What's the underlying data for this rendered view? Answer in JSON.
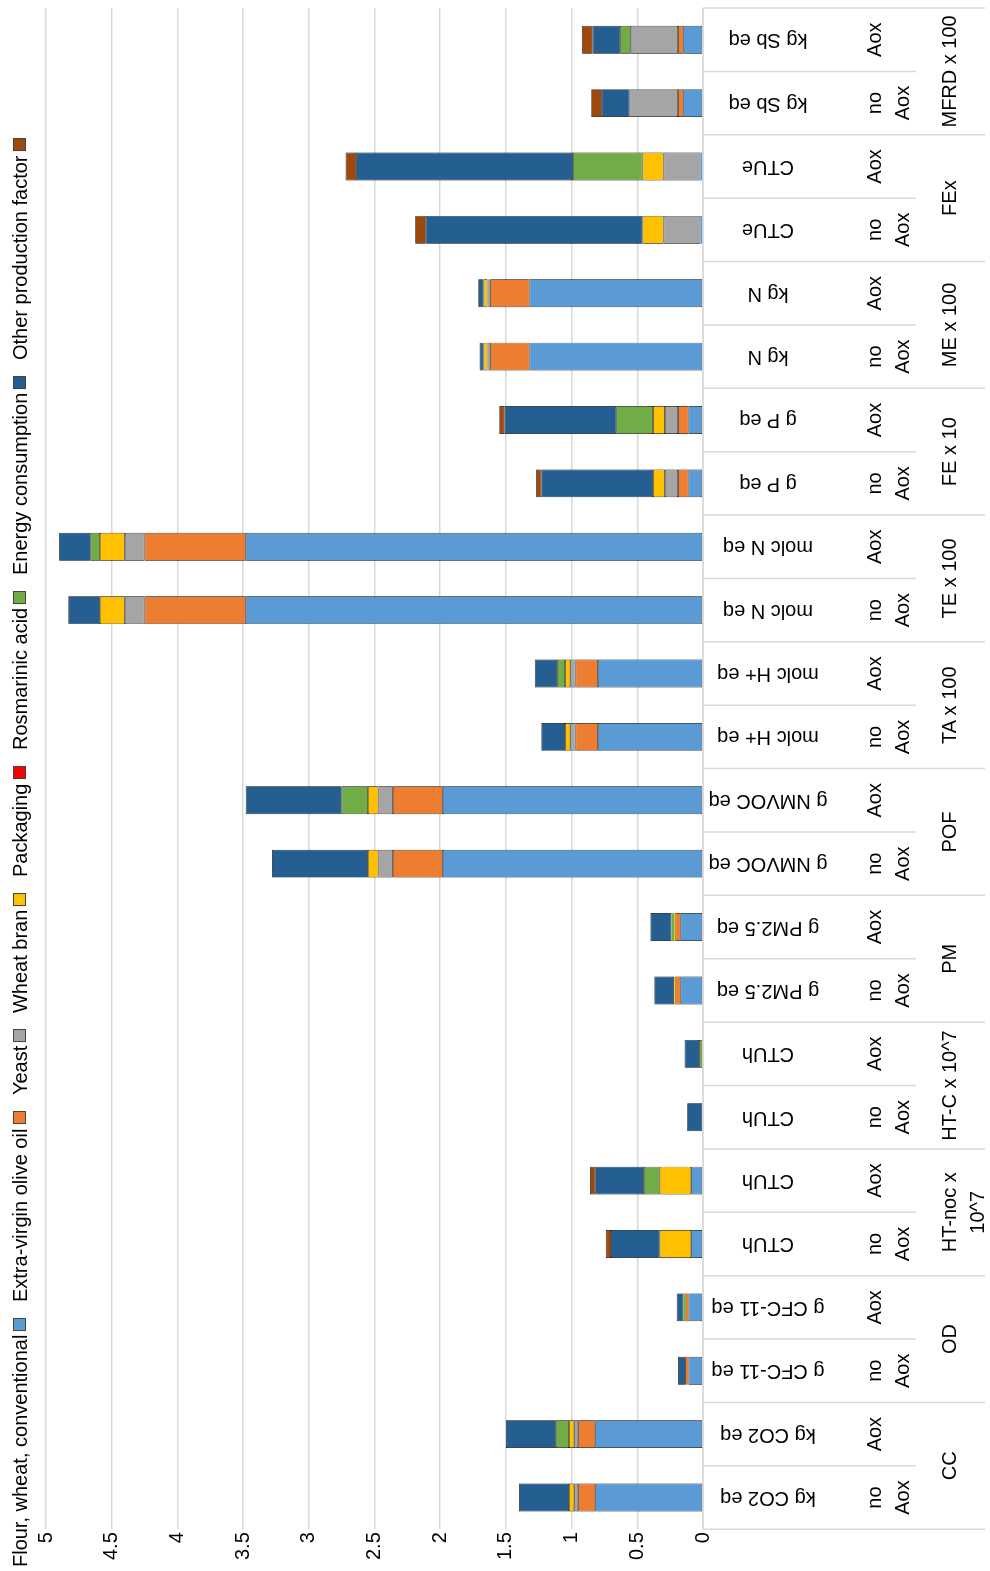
{
  "chart_data": {
    "type": "bar",
    "orientation": "horizontal",
    "stacked": true,
    "legend": "left",
    "grid": "x",
    "categories": [
      "kg Sb eq",
      "kg Sb eq",
      "CTUe",
      "CTUe",
      "kg N",
      "kg N",
      "g P eq",
      "g P eq",
      "molc N eq",
      "molc N eq",
      "molc H+ eq",
      "molc H+ eq",
      "g NMVOC eq",
      "g NMVOC eq",
      "g PM2.5 eq",
      "g PM2.5 eq",
      "CTUh",
      "CTUh",
      "CTUh",
      "CTUh",
      "g CFC-11 eq",
      "g CFC-11 eq",
      "kg CO2 eq",
      "kg CO2 eq"
    ],
    "xlim": [
      5,
      0
    ],
    "xticks": [
      0,
      0.5,
      1,
      1.5,
      2,
      2.5,
      3,
      3.5,
      4,
      4.5,
      5
    ],
    "series": [
      {
        "name": "Flour, wheat, conventional",
        "color": "#5b9bd5",
        "values": [
          0.15,
          0.15,
          0.02,
          0.02,
          1.32,
          1.32,
          0.11,
          0.11,
          3.48,
          3.48,
          0.8,
          0.8,
          1.98,
          1.98,
          0.17,
          0.17,
          null,
          0,
          0.09,
          0.09,
          0.11,
          0.11,
          0.82,
          0.82
        ]
      },
      {
        "name": "Extra-virgin olive oil",
        "color": "#ed7d31",
        "values": [
          0.04,
          0.04,
          0,
          0,
          0.3,
          0.3,
          0.08,
          0.08,
          0.77,
          0.77,
          0.17,
          0.17,
          0.38,
          0.38,
          0.04,
          0.04,
          0,
          0,
          0,
          0,
          0.02,
          0.02,
          0.13,
          0.13
        ]
      },
      {
        "name": "Yeast",
        "color": "#a5a5a5",
        "values": [
          0.36,
          0.37,
          0.28,
          0.28,
          0.02,
          0.02,
          0.1,
          0.1,
          0.15,
          0.15,
          0.04,
          0.04,
          0.11,
          0.11,
          null,
          null,
          0,
          0,
          0,
          0,
          0,
          0,
          0.03,
          0.03
        ]
      },
      {
        "name": "Wheat bran",
        "color": "#ffc000",
        "values": [
          0,
          0,
          0.16,
          0.16,
          0.03,
          0.03,
          0.09,
          0.09,
          0.19,
          0.19,
          0.04,
          0.04,
          0.08,
          0.08,
          0.01,
          0.01,
          0,
          0,
          0.24,
          0.24,
          0,
          0,
          0.04,
          0.04
        ]
      },
      {
        "name": "Packaging",
        "color": "#ff0000",
        "values": [
          0,
          0,
          0,
          0,
          0,
          0,
          0,
          0,
          0,
          0,
          0,
          0,
          0,
          0,
          0,
          0,
          0,
          0,
          0,
          0,
          0,
          0,
          0,
          0
        ]
      },
      {
        "name": "Rosmarinic acid",
        "color": "#70ad47",
        "values": [
          0.08,
          0,
          0.53,
          0,
          0,
          0,
          0.28,
          0,
          0.07,
          0,
          0.06,
          0,
          0.2,
          0,
          0.02,
          0,
          0.03,
          0,
          0.12,
          0,
          0.02,
          0,
          0.1,
          0
        ]
      },
      {
        "name": "Energy consumption",
        "color": "#255e91",
        "values": [
          0.21,
          0.21,
          1.65,
          1.65,
          0.04,
          0.03,
          0.85,
          0.85,
          0.24,
          0.24,
          0.17,
          0.18,
          0.73,
          0.73,
          0.16,
          0.15,
          0.11,
          0.12,
          0.37,
          0.37,
          0.05,
          0.06,
          0.38,
          0.38
        ]
      },
      {
        "name": "Other production factor",
        "color": "#9e480e",
        "values": [
          0.08,
          0.08,
          0.08,
          0.08,
          0,
          0,
          0.04,
          0.04,
          0,
          0,
          0,
          0,
          0,
          0,
          0,
          0,
          0,
          0,
          0.04,
          0.04,
          0,
          0,
          0,
          0
        ]
      }
    ],
    "annotations": [
      "Aox",
      "no Aox",
      "Aox",
      "no Aox",
      "Aox",
      "no Aox",
      "Aox",
      "no Aox",
      "Aox",
      "no Aox",
      "Aox",
      "no Aox",
      "Aox",
      "no Aox",
      "Aox",
      "no Aox",
      "Aox",
      "no Aox",
      "Aox",
      "no Aox",
      "Aox",
      "no Aox",
      "Aox",
      "no Aox",
      "MFRD x 100",
      "FEx",
      "ME x 100",
      "FE x 10",
      "TE x 100",
      "TA x 100",
      "POF",
      "PM",
      "HT-C x 10^7",
      "HT-noc x 10^7",
      "OD",
      "CC"
    ]
  }
}
